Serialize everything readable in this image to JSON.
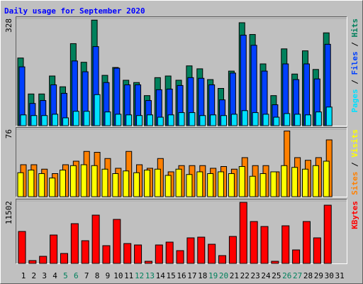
{
  "chart_data": [
    {
      "type": "bar",
      "title": "Daily usage for September 2020",
      "legend_separator": " / ",
      "ylim": [
        0,
        328
      ],
      "yticks": [
        328
      ],
      "series": [
        {
          "name": "Pages",
          "color": "#00e0ff",
          "values": [
            33,
            31,
            31,
            35,
            24,
            44,
            44,
            95,
            42,
            35,
            33,
            31,
            33,
            26,
            33,
            40,
            40,
            31,
            33,
            31,
            35,
            46,
            40,
            35,
            26,
            37,
            35,
            33,
            42,
            57,
            0
          ]
        },
        {
          "name": "Files",
          "color": "#0040ff",
          "values": [
            180,
            68,
            77,
            125,
            99,
            198,
            165,
            242,
            132,
            176,
            125,
            125,
            77,
            110,
            112,
            123,
            147,
            145,
            125,
            79,
            161,
            277,
            246,
            167,
            64,
            189,
            141,
            189,
            143,
            249,
            0
          ]
        },
        {
          "name": "Hits",
          "color": "#00805c",
          "values": [
            207,
            97,
            97,
            152,
            119,
            251,
            194,
            323,
            154,
            178,
            139,
            132,
            92,
            147,
            152,
            139,
            183,
            174,
            141,
            114,
            167,
            315,
            279,
            189,
            92,
            235,
            158,
            229,
            172,
            284,
            0
          ]
        }
      ]
    },
    {
      "type": "bar",
      "legend_separator": " / ",
      "ylim": [
        0,
        76
      ],
      "yticks": [
        76
      ],
      "series": [
        {
          "name": "Sites",
          "color": "#ff8000",
          "values": [
            36,
            36,
            31,
            26,
            36,
            40,
            51,
            50,
            43,
            32,
            51,
            36,
            32,
            43,
            28,
            35,
            35,
            35,
            32,
            34,
            31,
            44,
            35,
            35,
            28,
            74,
            44,
            41,
            44,
            64,
            0
          ]
        },
        {
          "name": "Visits",
          "color": "#ffff00",
          "values": [
            27,
            30,
            26,
            21,
            30,
            35,
            36,
            35,
            31,
            26,
            29,
            27,
            30,
            31,
            24,
            31,
            25,
            28,
            26,
            28,
            26,
            34,
            23,
            26,
            28,
            35,
            33,
            31,
            35,
            40,
            0
          ]
        }
      ]
    },
    {
      "type": "bar",
      "ylim": [
        0,
        11502
      ],
      "yticks": [
        11502
      ],
      "categories": [
        "1",
        "2",
        "3",
        "4",
        "5",
        "6",
        "7",
        "8",
        "9",
        "10",
        "11",
        "12",
        "13",
        "14",
        "15",
        "16",
        "17",
        "18",
        "19",
        "20",
        "21",
        "22",
        "23",
        "24",
        "25",
        "26",
        "27",
        "28",
        "29",
        "30",
        "31"
      ],
      "category_colors": [
        "#000000",
        "#000000",
        "#000000",
        "#000000",
        "#00805c",
        "#00805c",
        "#000000",
        "#000000",
        "#000000",
        "#000000",
        "#000000",
        "#00805c",
        "#00805c",
        "#000000",
        "#000000",
        "#000000",
        "#000000",
        "#000000",
        "#00805c",
        "#00805c",
        "#000000",
        "#000000",
        "#000000",
        "#000000",
        "#000000",
        "#00805c",
        "#00805c",
        "#000000",
        "#000000",
        "#000000",
        "#000000"
      ],
      "series": [
        {
          "name": "KBytes",
          "color": "#ff0000",
          "values": [
            5882,
            523,
            1307,
            5228,
            1830,
            7319,
            4182,
            8888,
            3267,
            8103,
            3659,
            3398,
            392,
            3398,
            3921,
            2353,
            4705,
            4836,
            3529,
            1438,
            4966,
            11241,
            7711,
            6796,
            392,
            6927,
            2483,
            7711,
            4705,
            10718,
            0
          ]
        }
      ]
    }
  ]
}
